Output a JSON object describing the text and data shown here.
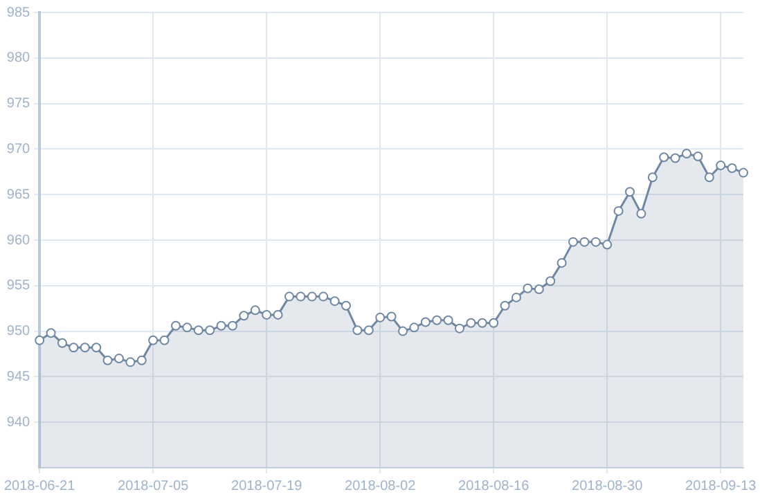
{
  "chart_data": {
    "type": "area",
    "categories": [
      "2018-06-21",
      null,
      null,
      null,
      null,
      null,
      null,
      null,
      null,
      null,
      "2018-07-05",
      null,
      null,
      null,
      null,
      null,
      null,
      null,
      null,
      null,
      "2018-07-19",
      null,
      null,
      null,
      null,
      null,
      null,
      null,
      null,
      null,
      "2018-08-02",
      null,
      null,
      null,
      null,
      null,
      null,
      null,
      null,
      null,
      "2018-08-16",
      null,
      null,
      null,
      null,
      null,
      null,
      null,
      null,
      null,
      "2018-08-30",
      null,
      null,
      null,
      null,
      null,
      null,
      null,
      null,
      null,
      "2018-09-13",
      null,
      null
    ],
    "series": [
      {
        "color": "#6f87a3",
        "values": [
          949.0,
          949.8,
          948.7,
          948.2,
          948.2,
          948.2,
          946.8,
          947.0,
          946.6,
          946.8,
          949.0,
          949.0,
          950.6,
          950.4,
          950.1,
          950.1,
          950.6,
          950.6,
          951.7,
          952.3,
          951.8,
          951.8,
          953.8,
          953.8,
          953.8,
          953.8,
          953.3,
          952.8,
          950.1,
          950.1,
          951.5,
          951.6,
          950.0,
          950.4,
          951.0,
          951.2,
          951.2,
          950.3,
          950.9,
          950.9,
          950.9,
          952.8,
          953.7,
          954.7,
          954.6,
          955.5,
          957.5,
          959.8,
          959.8,
          959.8,
          959.5,
          963.2,
          965.3,
          962.9,
          966.9,
          969.1,
          969.0,
          969.5,
          969.2,
          966.9,
          968.2,
          967.9,
          967.4
        ]
      }
    ],
    "ylim": [
      935,
      985
    ],
    "yticks": [
      940,
      945,
      950,
      955,
      960,
      965,
      970,
      975,
      980,
      985
    ],
    "grid": true,
    "legend": false,
    "marker": "circle"
  }
}
